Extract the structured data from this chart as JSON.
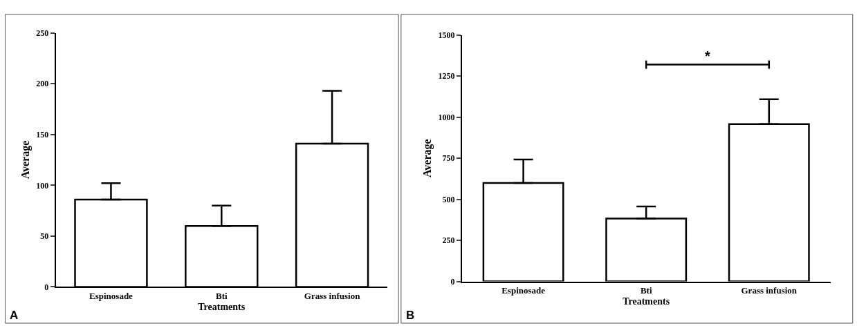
{
  "chart_data": [
    {
      "type": "bar",
      "categories": [
        "Espinosade",
        "Bti",
        "Grass infusion"
      ],
      "values": [
        86,
        60,
        141
      ],
      "errors": [
        [
          86,
          102
        ],
        [
          60,
          80
        ],
        [
          141,
          193
        ]
      ],
      "color": "#ffffff",
      "ylim": [
        0,
        250
      ],
      "yticks": [
        0,
        50,
        100,
        150,
        200,
        250
      ],
      "xlabel": "Treatments",
      "ylabel": "Average",
      "annotations": [
        "A"
      ]
    },
    {
      "type": "bar",
      "categories": [
        "Espinosade",
        "Bti",
        "Grass infusion"
      ],
      "values": [
        600,
        383,
        958
      ],
      "errors": [
        [
          600,
          742
        ],
        [
          383,
          457
        ],
        [
          958,
          1109
        ]
      ],
      "color": "#ffffff",
      "ylim": [
        0,
        1500
      ],
      "yticks": [
        0,
        250,
        500,
        750,
        1000,
        1250,
        1500
      ],
      "xlabel": "Treatments",
      "ylabel": "Average",
      "annotations": [
        "*",
        "B"
      ]
    }
  ]
}
